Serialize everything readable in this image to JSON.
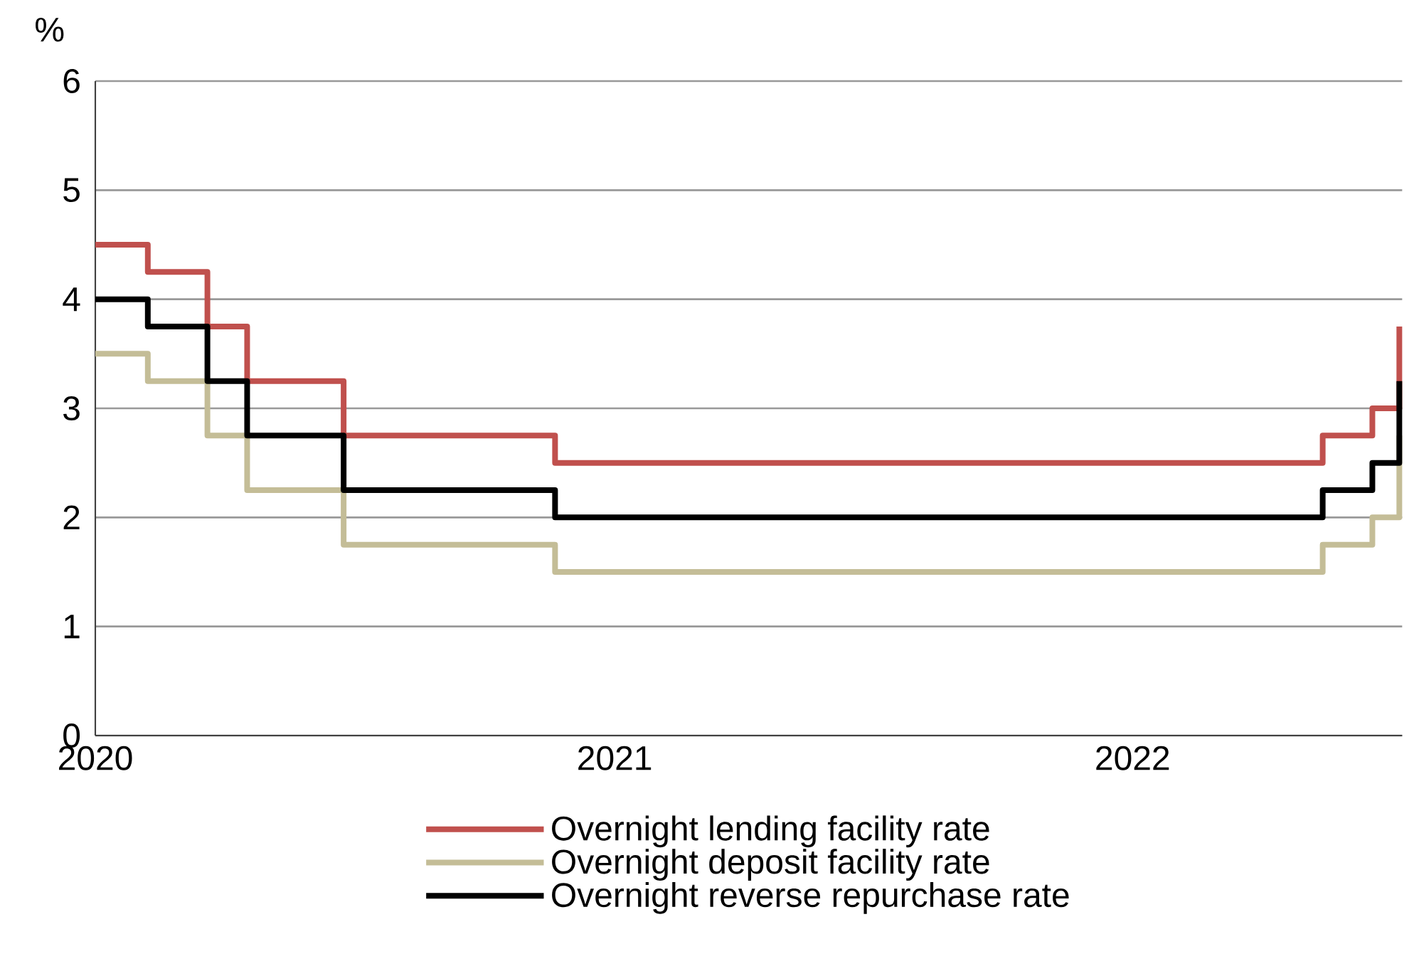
{
  "chart_data": {
    "type": "step",
    "ylabel": "%",
    "xlim": [
      "2020-01-01",
      "2022-07-10"
    ],
    "xticks": [
      "2020",
      "2021",
      "2022"
    ],
    "ylim": [
      0,
      6
    ],
    "yticks": [
      0,
      1,
      2,
      3,
      4,
      5,
      6
    ],
    "grid": "y",
    "legend": "bottom",
    "line_style": "solid",
    "marker": "none",
    "x": [
      "2020-01-01",
      "2020-02-07",
      "2020-03-20",
      "2020-04-17",
      "2020-06-24",
      "2020-11-20",
      "2022-05-15",
      "2022-06-19",
      "2022-07-08"
    ],
    "series": [
      {
        "name": "Overnight lending facility rate",
        "color": "#c0504d",
        "values": [
          4.5,
          4.25,
          3.75,
          3.25,
          2.75,
          2.5,
          2.75,
          3.0,
          3.75
        ]
      },
      {
        "name": "Overnight  deposit facility rate",
        "color": "#c4bd97",
        "values": [
          3.5,
          3.25,
          2.75,
          2.25,
          1.75,
          1.5,
          1.75,
          2.0,
          2.75
        ]
      },
      {
        "name": "Overnight  reverse repurchase rate",
        "color": "#000000",
        "values": [
          4.0,
          3.75,
          3.25,
          2.75,
          2.25,
          2.0,
          2.25,
          2.5,
          3.25
        ]
      }
    ]
  }
}
